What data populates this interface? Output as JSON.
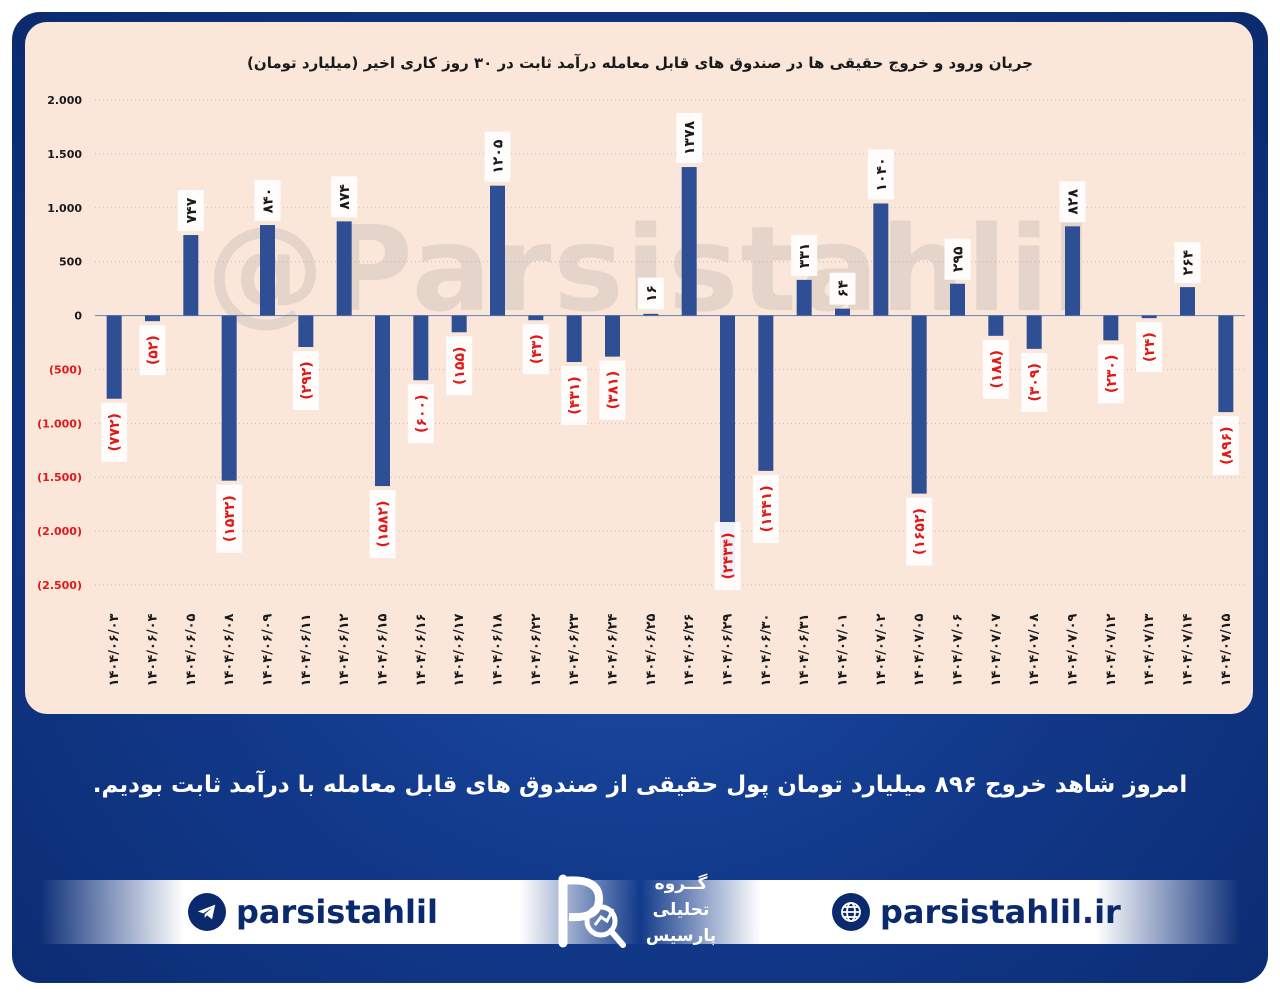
{
  "chart_data": {
    "type": "bar",
    "title": "جریان ورود و خروج حقیقی ها در صندوق های قابل معامله درآمد ثابت در ۳۰ روز کاری اخیر (میلیارد تومان)",
    "xlabel": "",
    "ylabel": "",
    "ylim": [
      -2500,
      2000
    ],
    "yticks": [
      2000,
      1500,
      1000,
      500,
      0,
      -500,
      -1000,
      -1500,
      -2000,
      -2500
    ],
    "ytick_labels": [
      "2.000",
      "1.500",
      "1.000",
      "500",
      "0",
      "(500)",
      "(1.000)",
      "(1.500)",
      "(2.000)",
      "(2.500)"
    ],
    "categories": [
      "۱۴۰۴/۰۶/۰۳",
      "۱۴۰۴/۰۶/۰۴",
      "۱۴۰۴/۰۶/۰۵",
      "۱۴۰۴/۰۶/۰۸",
      "۱۴۰۴/۰۶/۰۹",
      "۱۴۰۴/۰۶/۱۱",
      "۱۴۰۴/۰۶/۱۲",
      "۱۴۰۴/۰۶/۱۵",
      "۱۴۰۴/۰۶/۱۶",
      "۱۴۰۴/۰۶/۱۷",
      "۱۴۰۴/۰۶/۱۸",
      "۱۴۰۴/۰۶/۲۲",
      "۱۴۰۴/۰۶/۲۳",
      "۱۴۰۴/۰۶/۲۴",
      "۱۴۰۴/۰۶/۲۵",
      "۱۴۰۴/۰۶/۲۶",
      "۱۴۰۴/۰۶/۲۹",
      "۱۴۰۴/۰۶/۳۰",
      "۱۴۰۴/۰۶/۳۱",
      "۱۴۰۴/۰۷/۰۱",
      "۱۴۰۴/۰۷/۰۲",
      "۱۴۰۴/۰۷/۰۵",
      "۱۴۰۴/۰۷/۰۶",
      "۱۴۰۴/۰۷/۰۷",
      "۱۴۰۴/۰۷/۰۸",
      "۱۴۰۴/۰۷/۰۹",
      "۱۴۰۴/۰۷/۱۲",
      "۱۴۰۴/۰۷/۱۳",
      "۱۴۰۴/۰۷/۱۴",
      "۱۴۰۴/۰۷/۱۵"
    ],
    "values": [
      -772,
      -52,
      747,
      -1532,
      840,
      -292,
      874,
      -1582,
      -600,
      -155,
      1205,
      -43,
      -431,
      -381,
      16,
      1378,
      -2434,
      -1441,
      331,
      64,
      1040,
      -1652,
      295,
      -188,
      -309,
      828,
      -230,
      -24,
      264,
      -896
    ],
    "data_labels": [
      "(۷۷۲)",
      "(۵۲)",
      "۷۴۷",
      "(۱۵۳۲)",
      "۸۴۰",
      "(۲۹۲)",
      "۸۷۴",
      "(۱۵۸۲)",
      "(۶۰۰)",
      "(۱۵۵)",
      "۱۲۰۵",
      "(۴۳)",
      "(۴۳۱)",
      "(۳۸۱)",
      "۱۶",
      "۱۳۷۸",
      "(۲۴۳۴)",
      "(۱۴۴۱)",
      "۳۳۱",
      "۶۴",
      "۱۰۴۰",
      "(۱۶۵۲)",
      "۲۹۵",
      "(۱۸۸)",
      "(۳۰۹)",
      "۸۲۸",
      "(۲۳۰)",
      "(۲۴)",
      "۲۶۴",
      "(۸۹۶)"
    ],
    "bar_color": "#2f4f94",
    "positive_label_color": "#1a1a1a",
    "negative_label_color": "#e01818",
    "grid": true
  },
  "watermark": "@Parsistahlil",
  "caption": "امروز شاهد خروج ۸۹۶ میلیارد تومان پول حقیقی از صندوق های قابل معامله با درآمد ثابت بودیم.",
  "footer": {
    "telegram_handle": "parsistahlil",
    "website": "parsistahlil.ir",
    "logo_line1": "گــروه",
    "logo_line2": "تحلیلی",
    "logo_line3": "پارسیس"
  }
}
